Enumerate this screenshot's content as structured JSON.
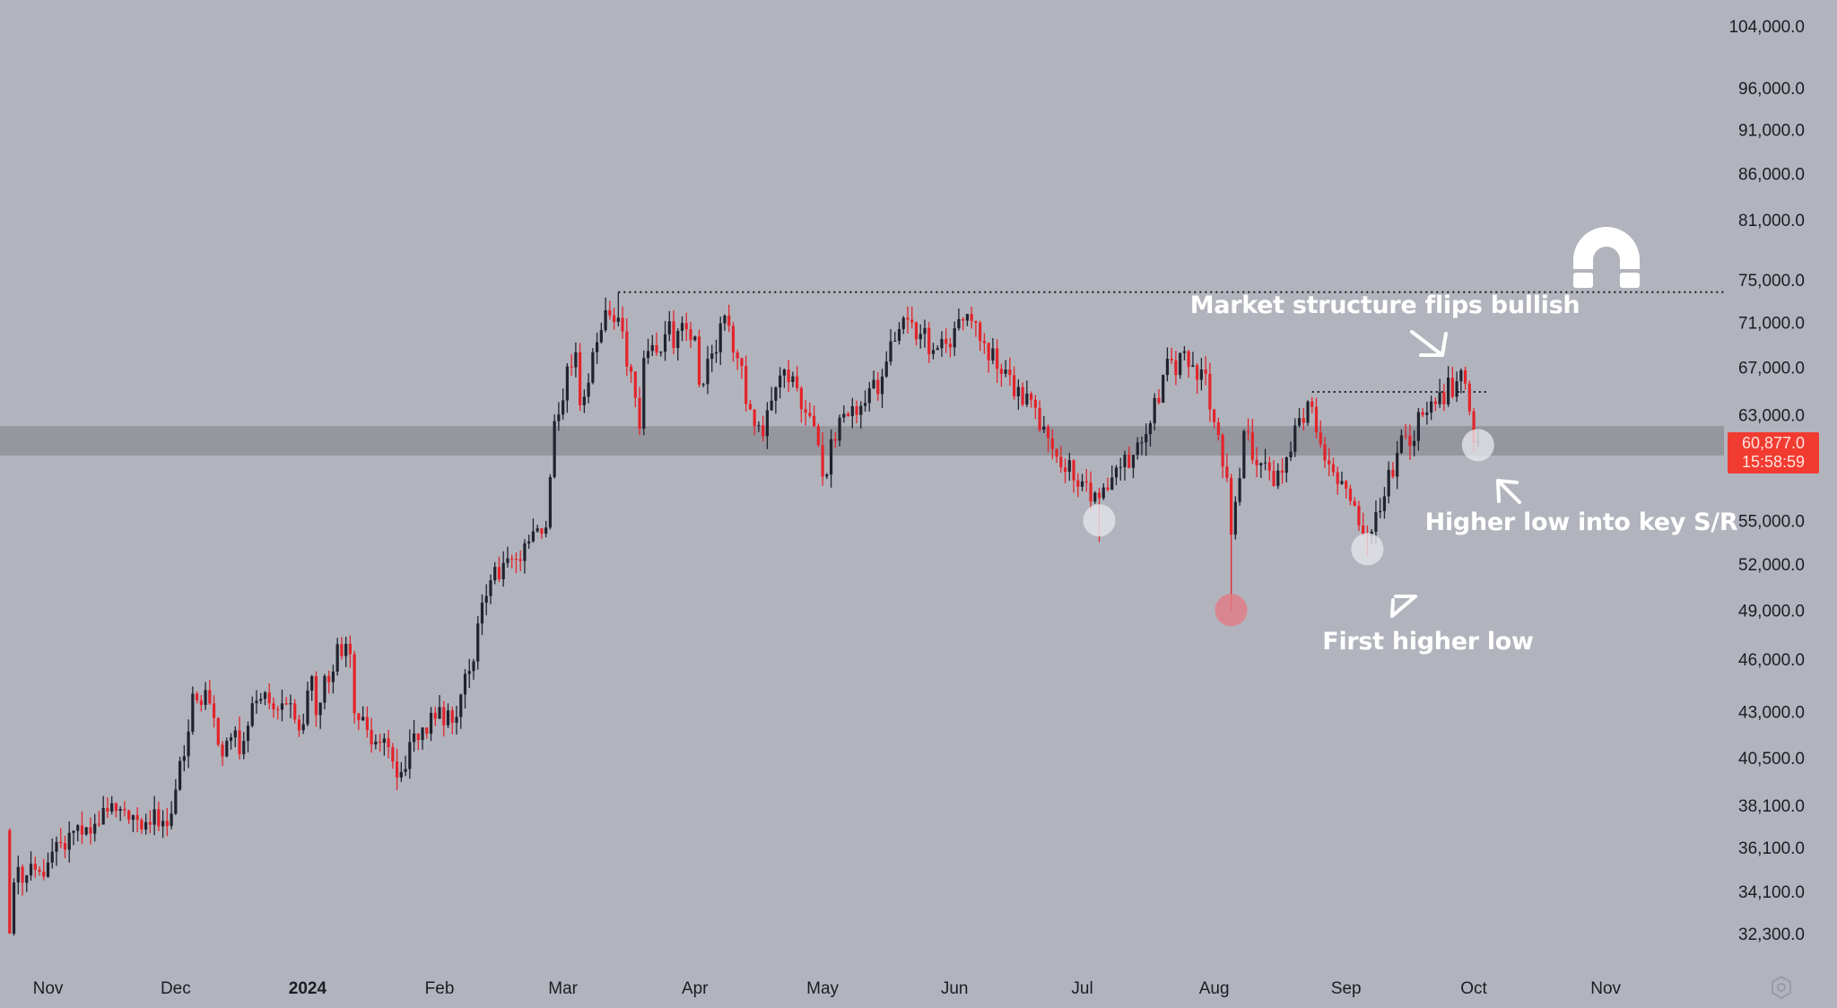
{
  "chart_data": {
    "type": "candlestick",
    "title": "",
    "scale": "log",
    "y_ticks": [
      104000,
      96000,
      91000,
      86000,
      81000,
      75000,
      71000,
      67000,
      63000,
      55000,
      52000,
      49000,
      46000,
      43000,
      40500,
      38100,
      36100,
      34100,
      32300
    ],
    "y_tick_labels": [
      "104,000.0",
      "96,000.0",
      "91,000.0",
      "86,000.0",
      "81,000.0",
      "75,000.0",
      "71,000.0",
      "67,000.0",
      "63,000.0",
      "55,000.0",
      "52,000.0",
      "49,000.0",
      "46,000.0",
      "43,000.0",
      "40,500.0",
      "38,100.0",
      "36,100.0",
      "34,100.0",
      "32,300.0"
    ],
    "x_tick_labels": [
      {
        "label": "Nov",
        "date": "2023-11-01",
        "bold": false
      },
      {
        "label": "Dec",
        "date": "2023-12-01",
        "bold": false
      },
      {
        "label": "2024",
        "date": "2024-01-01",
        "bold": true
      },
      {
        "label": "Feb",
        "date": "2024-02-01",
        "bold": false
      },
      {
        "label": "Mar",
        "date": "2024-03-01",
        "bold": false
      },
      {
        "label": "Apr",
        "date": "2024-04-01",
        "bold": false
      },
      {
        "label": "May",
        "date": "2024-05-01",
        "bold": false
      },
      {
        "label": "Jun",
        "date": "2024-06-01",
        "bold": false
      },
      {
        "label": "Jul",
        "date": "2024-07-01",
        "bold": false
      },
      {
        "label": "Aug",
        "date": "2024-08-01",
        "bold": false
      },
      {
        "label": "Sep",
        "date": "2024-09-01",
        "bold": false
      },
      {
        "label": "Oct",
        "date": "2024-10-01",
        "bold": false
      },
      {
        "label": "Nov",
        "date": "2024-11-01",
        "bold": false
      }
    ],
    "close_anchors": [
      [
        "2023-10-23",
        32300
      ],
      [
        "2023-10-24",
        34500
      ],
      [
        "2023-11-01",
        35400
      ],
      [
        "2023-11-09",
        36700
      ],
      [
        "2023-11-15",
        37800
      ],
      [
        "2023-11-20",
        37400
      ],
      [
        "2023-11-30",
        37700
      ],
      [
        "2023-12-04",
        41900
      ],
      [
        "2023-12-05",
        44000
      ],
      [
        "2023-12-08",
        44200
      ],
      [
        "2023-12-11",
        41200
      ],
      [
        "2023-12-17",
        41400
      ],
      [
        "2023-12-20",
        43600
      ],
      [
        "2023-12-27",
        43400
      ],
      [
        "2023-12-31",
        42300
      ],
      [
        "2024-01-02",
        45000
      ],
      [
        "2024-01-03",
        42800
      ],
      [
        "2024-01-08",
        46900
      ],
      [
        "2024-01-11",
        46300
      ],
      [
        "2024-01-12",
        42900
      ],
      [
        "2024-01-18",
        41300
      ],
      [
        "2024-01-22",
        39500
      ],
      [
        "2024-01-26",
        41800
      ],
      [
        "2024-01-31",
        42600
      ],
      [
        "2024-02-05",
        42700
      ],
      [
        "2024-02-08",
        45300
      ],
      [
        "2024-02-12",
        49900
      ],
      [
        "2024-02-14",
        51800
      ],
      [
        "2024-02-20",
        52200
      ],
      [
        "2024-02-26",
        54500
      ],
      [
        "2024-02-28",
        62500
      ],
      [
        "2024-03-04",
        68300
      ],
      [
        "2024-03-05",
        63800
      ],
      [
        "2024-03-08",
        68300
      ],
      [
        "2024-03-11",
        72100
      ],
      [
        "2024-03-14",
        71400
      ],
      [
        "2024-03-19",
        61900
      ],
      [
        "2024-03-20",
        67800
      ],
      [
        "2024-03-25",
        69900
      ],
      [
        "2024-04-01",
        69700
      ],
      [
        "2024-04-02",
        65500
      ],
      [
        "2024-04-08",
        71600
      ],
      [
        "2024-04-12",
        67100
      ],
      [
        "2024-04-13",
        63900
      ],
      [
        "2024-04-17",
        61300
      ],
      [
        "2024-04-22",
        66800
      ],
      [
        "2024-04-30",
        60600
      ],
      [
        "2024-05-01",
        58200
      ],
      [
        "2024-05-06",
        63100
      ],
      [
        "2024-05-15",
        66200
      ],
      [
        "2024-05-20",
        71400
      ],
      [
        "2024-05-27",
        68500
      ],
      [
        "2024-06-05",
        71100
      ],
      [
        "2024-06-07",
        69300
      ],
      [
        "2024-06-13",
        66800
      ],
      [
        "2024-06-24",
        60300
      ],
      [
        "2024-07-04",
        57000
      ],
      [
        "2024-07-05",
        56600
      ],
      [
        "2024-07-14",
        60800
      ],
      [
        "2024-07-22",
        67600
      ],
      [
        "2024-07-29",
        66800
      ],
      [
        "2024-08-02",
        61400
      ],
      [
        "2024-08-04",
        58100
      ],
      [
        "2024-08-05",
        54000
      ],
      [
        "2024-08-08",
        61700
      ],
      [
        "2024-08-15",
        57500
      ],
      [
        "2024-08-23",
        64100
      ],
      [
        "2024-08-27",
        59400
      ],
      [
        "2024-09-06",
        53900
      ],
      [
        "2024-09-13",
        60000
      ],
      [
        "2024-09-20",
        63200
      ],
      [
        "2024-09-27",
        65800
      ],
      [
        "2024-09-29",
        65600
      ],
      [
        "2024-09-30",
        63300
      ],
      [
        "2024-10-01",
        60800
      ],
      [
        "2024-10-02",
        60877
      ]
    ],
    "wick_lows": [
      [
        "2024-08-05",
        49000
      ],
      [
        "2024-09-06",
        52550
      ],
      [
        "2024-07-05",
        53500
      ],
      [
        "2024-10-01",
        60000
      ]
    ],
    "wick_highs": [
      [
        "2024-03-14",
        73800
      ]
    ],
    "resistance_level": 73800,
    "local_high_level": 64900,
    "support_zone": [
      59800,
      62100
    ],
    "last_price": {
      "value": "60,877.0",
      "countdown": "15:58:59"
    },
    "colors": {
      "bull": "#20232e",
      "bear": "#e3242b",
      "background": "#b2b4bd",
      "zone": "#8f9199",
      "price_tag": "#f23b30"
    },
    "markers": [
      {
        "date": "2024-07-05",
        "price": 55000,
        "color": "#e4e5ea"
      },
      {
        "date": "2024-08-05",
        "price": 49000,
        "color": "#e47a86"
      },
      {
        "date": "2024-09-06",
        "price": 53000,
        "color": "#e4e5ea"
      },
      {
        "date": "2024-10-02",
        "price": 60600,
        "color": "#e4e5ea"
      }
    ]
  },
  "annotations": {
    "structure": "Market structure flips bullish",
    "higher_low_sr": "Higher low into key S/R",
    "first_higher_low": "First higher low"
  },
  "icons": {
    "magnet": "magnet-icon",
    "settings": "gear-icon"
  }
}
